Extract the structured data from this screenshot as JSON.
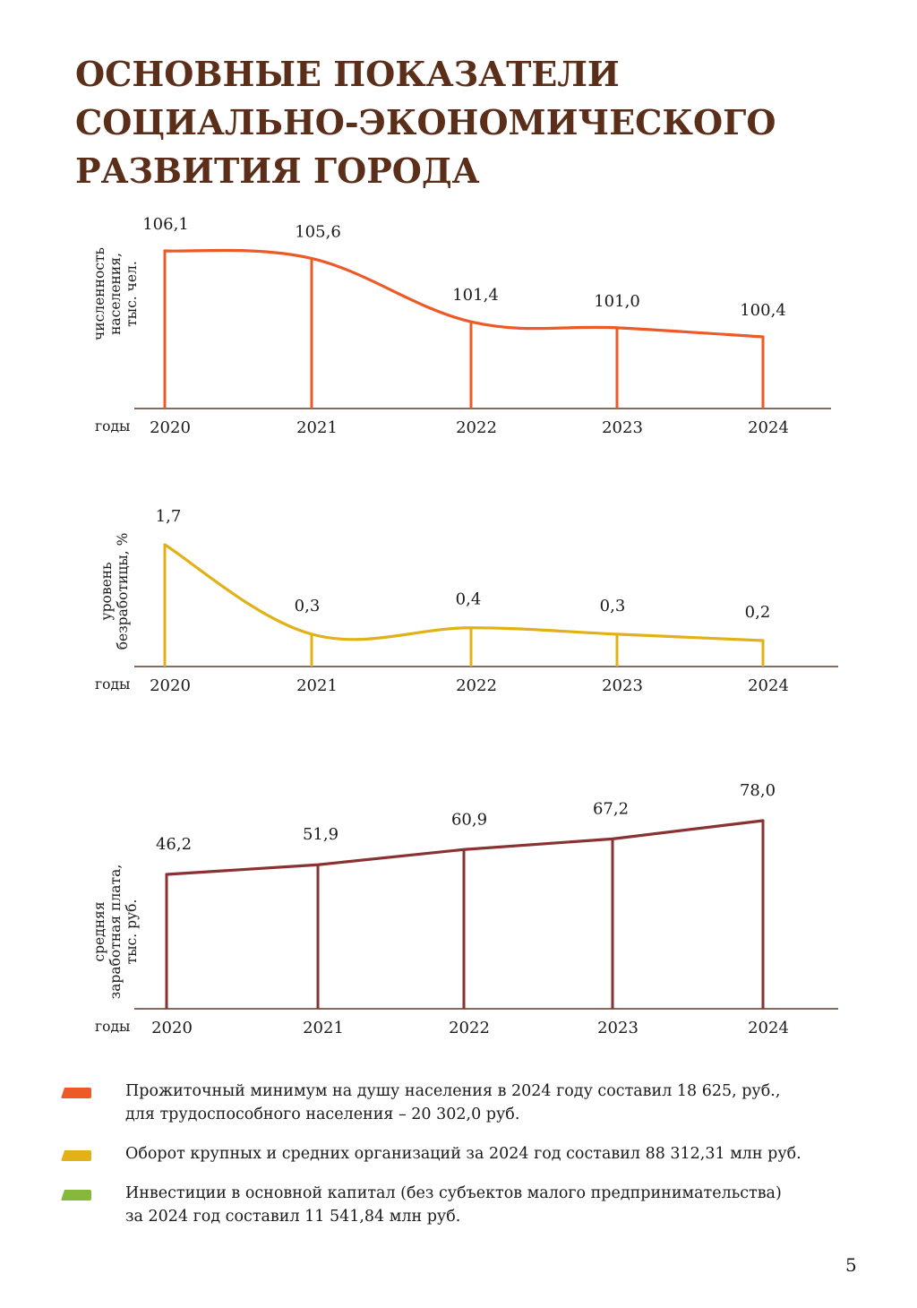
{
  "title": {
    "line1": "ОСНОВНЫЕ ПОКАЗАТЕЛИ",
    "line2": "СОЦИАЛЬНО-ЭКОНОМИЧЕСКОГО",
    "line3": "РАЗВИТИЯ ГОРОДА"
  },
  "colors": {
    "title": "#5b2e1a",
    "population": "#ec5a27",
    "unemployment": "#e2b118",
    "salary": "#8a3232",
    "axis": "#5b3a2a",
    "marker_orange": "#ec5a27",
    "marker_yellow": "#e2b118",
    "marker_green": "#86b83c"
  },
  "chart_data": [
    {
      "type": "line",
      "ylabel_lines": [
        "численность",
        "населения,",
        "тыс. чел."
      ],
      "xlabel": "годы",
      "categories": [
        "2020",
        "2021",
        "2022",
        "2023",
        "2024"
      ],
      "values": [
        106.1,
        105.6,
        101.4,
        101.0,
        100.4
      ],
      "value_labels": [
        "106,1",
        "105,6",
        "101,4",
        "101,0",
        "100,4"
      ]
    },
    {
      "type": "line",
      "ylabel_lines": [
        "уровень",
        "безработицы, %"
      ],
      "xlabel": "годы",
      "categories": [
        "2020",
        "2021",
        "2022",
        "2023",
        "2024"
      ],
      "values": [
        1.7,
        0.3,
        0.4,
        0.3,
        0.2
      ],
      "value_labels": [
        "1,7",
        "0,3",
        "0,4",
        "0,3",
        "0,2"
      ]
    },
    {
      "type": "line",
      "ylabel_lines": [
        "средняя",
        "заработная плата,",
        "тыс. руб."
      ],
      "xlabel": "годы",
      "categories": [
        "2020",
        "2021",
        "2022",
        "2023",
        "2024"
      ],
      "values": [
        46.2,
        51.9,
        60.9,
        67.2,
        78.0
      ],
      "value_labels": [
        "46,2",
        "51,9",
        "60,9",
        "67,2",
        "78,0"
      ]
    }
  ],
  "notes": [
    {
      "color": "#ec5a27",
      "line1": "Прожиточный минимум на душу населения в 2024 году  составил 18 625, руб.,",
      "line2": "для трудоспособного населения – 20 302,0 руб."
    },
    {
      "color": "#e2b118",
      "line1": "Оборот крупных и средних организаций за 2024 год составил 88 312,31 млн руб.",
      "line2": ""
    },
    {
      "color": "#86b83c",
      "line1": "Инвестиции в основной капитал (без субъектов малого предпринимательства)",
      "line2": "за 2024 год составил 11 541,84 млн руб."
    }
  ],
  "page_number": "5"
}
